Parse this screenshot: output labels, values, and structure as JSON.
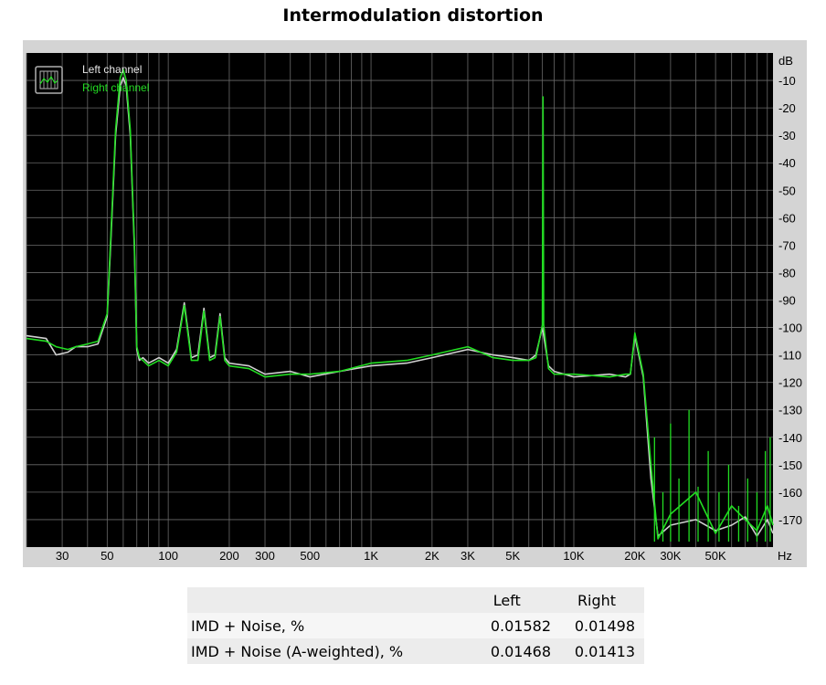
{
  "title": "Intermodulation distortion",
  "chart_data": {
    "type": "line",
    "xlabel": "",
    "x_unit_label": "Hz",
    "y_unit_label": "dB",
    "x_scale": "log",
    "xlim": [
      20,
      96000
    ],
    "ylim": [
      -180,
      0
    ],
    "grid": true,
    "legend_position": "top-left",
    "x_ticks": [
      {
        "v": 30,
        "label": "30"
      },
      {
        "v": 50,
        "label": "50"
      },
      {
        "v": 100,
        "label": "100"
      },
      {
        "v": 200,
        "label": "200"
      },
      {
        "v": 300,
        "label": "300"
      },
      {
        "v": 500,
        "label": "500"
      },
      {
        "v": 1000,
        "label": "1K"
      },
      {
        "v": 2000,
        "label": "2K"
      },
      {
        "v": 3000,
        "label": "3K"
      },
      {
        "v": 5000,
        "label": "5K"
      },
      {
        "v": 10000,
        "label": "10K"
      },
      {
        "v": 20000,
        "label": "20K"
      },
      {
        "v": 30000,
        "label": "30K"
      },
      {
        "v": 50000,
        "label": "50K"
      }
    ],
    "y_ticks": [
      {
        "v": -10,
        "label": "-10"
      },
      {
        "v": -20,
        "label": "-20"
      },
      {
        "v": -30,
        "label": "-30"
      },
      {
        "v": -40,
        "label": "-40"
      },
      {
        "v": -50,
        "label": "-50"
      },
      {
        "v": -60,
        "label": "-60"
      },
      {
        "v": -70,
        "label": "-70"
      },
      {
        "v": -80,
        "label": "-80"
      },
      {
        "v": -90,
        "label": "-90"
      },
      {
        "v": -100,
        "label": "-100"
      },
      {
        "v": -110,
        "label": "-110"
      },
      {
        "v": -120,
        "label": "-120"
      },
      {
        "v": -130,
        "label": "-130"
      },
      {
        "v": -140,
        "label": "-140"
      },
      {
        "v": -150,
        "label": "-150"
      },
      {
        "v": -160,
        "label": "-160"
      },
      {
        "v": -170,
        "label": "-170"
      }
    ],
    "series": [
      {
        "name": "Left channel",
        "color": "#d0d0d0",
        "x": [
          20,
          25,
          28,
          32,
          35,
          40,
          45,
          50,
          52,
          55,
          58,
          60,
          62,
          65,
          68,
          70,
          72,
          75,
          80,
          90,
          100,
          110,
          120,
          130,
          140,
          150,
          160,
          170,
          180,
          190,
          200,
          250,
          300,
          400,
          500,
          700,
          1000,
          1500,
          2000,
          3000,
          4000,
          5000,
          6000,
          6500,
          7000,
          7500,
          8000,
          10000,
          15000,
          18000,
          19000,
          20000,
          22000,
          24000,
          26000,
          30000,
          40000,
          50000,
          60000,
          70000,
          80000,
          90000,
          96000
        ],
        "y": [
          -103,
          -104,
          -110,
          -109,
          -107,
          -107,
          -106,
          -96,
          -70,
          -30,
          -12,
          -9,
          -12,
          -30,
          -70,
          -108,
          -112,
          -111,
          -113,
          -111,
          -113,
          -108,
          -91,
          -111,
          -110,
          -93,
          -111,
          -110,
          -95,
          -111,
          -113,
          -114,
          -117,
          -116,
          -118,
          -116,
          -114,
          -113,
          -111,
          -108,
          -110,
          -111,
          -112,
          -110,
          -100,
          -114,
          -116,
          -118,
          -117,
          -118,
          -117,
          -103,
          -118,
          -155,
          -176,
          -172,
          -170,
          -174,
          -172,
          -169,
          -176,
          -170,
          -175
        ]
      },
      {
        "name": "Right channel",
        "color": "#22dd22",
        "x": [
          20,
          25,
          28,
          32,
          35,
          40,
          45,
          50,
          52,
          55,
          58,
          60,
          62,
          65,
          68,
          70,
          72,
          75,
          80,
          90,
          100,
          110,
          120,
          130,
          140,
          150,
          160,
          170,
          180,
          190,
          200,
          250,
          300,
          400,
          500,
          700,
          1000,
          1500,
          2000,
          3000,
          4000,
          5000,
          6000,
          6500,
          7000,
          7050,
          7100,
          7500,
          8000,
          10000,
          15000,
          18000,
          19000,
          20000,
          22000,
          24000,
          26000,
          30000,
          40000,
          50000,
          60000,
          70000,
          80000,
          90000,
          96000
        ],
        "y": [
          -104,
          -105,
          -107,
          -108,
          -107,
          -106,
          -105,
          -95,
          -68,
          -28,
          -9,
          -6,
          -10,
          -28,
          -68,
          -107,
          -111,
          -112,
          -114,
          -112,
          -114,
          -109,
          -92,
          -112,
          -112,
          -94,
          -112,
          -111,
          -96,
          -112,
          -114,
          -115,
          -118,
          -117,
          -117,
          -116,
          -113,
          -112,
          -110,
          -107,
          -111,
          -112,
          -112,
          -111,
          -99,
          -16,
          -99,
          -115,
          -117,
          -117,
          -118,
          -117,
          -117,
          -102,
          -117,
          -150,
          -177,
          -168,
          -160,
          -175,
          -165,
          -170,
          -174,
          -165,
          -172
        ]
      }
    ],
    "spikes": [
      {
        "series": "Right channel",
        "x": [
          22500,
          25000,
          27500,
          30000,
          33000,
          37000,
          41000,
          46000,
          52000,
          58000,
          65000,
          72000,
          80000,
          88000,
          93000
        ],
        "y": [
          -178,
          -140,
          -160,
          -135,
          -155,
          -130,
          -158,
          -145,
          -160,
          -150,
          -165,
          -155,
          -160,
          -145,
          -140
        ]
      }
    ]
  },
  "table": {
    "headers": [
      "",
      "Left",
      "Right"
    ],
    "rows": [
      {
        "label": "IMD + Noise, %",
        "left": "0.01582",
        "right": "0.01498"
      },
      {
        "label": "IMD + Noise (A-weighted), %",
        "left": "0.01468",
        "right": "0.01413"
      }
    ]
  }
}
